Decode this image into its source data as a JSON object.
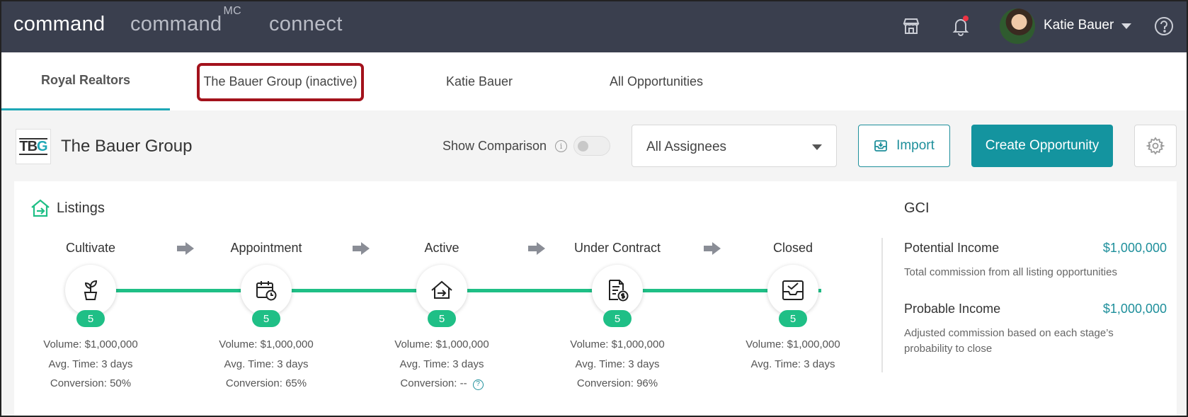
{
  "topbar": {
    "brands": [
      "command",
      "command",
      "connect"
    ],
    "brand_superscript": "MC",
    "user_name": "Katie Bauer",
    "icons": [
      "store-icon",
      "bell-icon",
      "avatar",
      "chevron-down-icon",
      "help-icon"
    ],
    "notification_dot_color": "#ee3344"
  },
  "tabs": [
    {
      "label": "Royal Realtors",
      "active": true
    },
    {
      "label": "The Bauer Group (inactive)",
      "active": false,
      "highlighted": true
    },
    {
      "label": "Katie Bauer",
      "active": false
    },
    {
      "label": "All Opportunities",
      "active": false
    }
  ],
  "toolbar": {
    "logo_text_a": "TB",
    "logo_text_b": "G",
    "group_name": "The Bauer Group",
    "show_comparison_label": "Show Comparison",
    "show_comparison_on": false,
    "assignee_select": "All Assignees",
    "import_label": "Import",
    "create_label": "Create Opportunity"
  },
  "listings": {
    "title": "Listings",
    "stages": [
      {
        "name": "Cultivate",
        "icon": "plant-icon",
        "count": "5",
        "volume": "Volume: $1,000,000",
        "avg_time": "Avg. Time: 3 days",
        "conversion": "Conversion: 50%"
      },
      {
        "name": "Appointment",
        "icon": "calendar-clock-icon",
        "count": "5",
        "volume": "Volume: $1,000,000",
        "avg_time": "Avg. Time: 3 days",
        "conversion": "Conversion: 65%"
      },
      {
        "name": "Active",
        "icon": "house-arrow-icon",
        "count": "5",
        "volume": "Volume: $1,000,000",
        "avg_time": "Avg. Time: 3 days",
        "conversion": "Conversion: --"
      },
      {
        "name": "Under Contract",
        "icon": "contract-dollar-icon",
        "count": "5",
        "volume": "Volume: $1,000,000",
        "avg_time": "Avg. Time: 3 days",
        "conversion": "Conversion: 96%"
      },
      {
        "name": "Closed",
        "icon": "inbox-check-icon",
        "count": "5",
        "volume": "Volume: $1,000,000",
        "avg_time": "Avg. Time: 3 days"
      }
    ]
  },
  "gci": {
    "title": "GCI",
    "potential_label": "Potential Income",
    "potential_value": "$1,000,000",
    "potential_desc": "Total commission from all listing opportunities",
    "probable_label": "Probable Income",
    "probable_value": "$1,000,000",
    "probable_desc": "Adjusted commission based on each stage’s probability to close"
  },
  "colors": {
    "topbar": "#3a3f4e",
    "accent": "#14949f",
    "progress": "#1fbf86",
    "highlight_box": "#a3121c"
  }
}
